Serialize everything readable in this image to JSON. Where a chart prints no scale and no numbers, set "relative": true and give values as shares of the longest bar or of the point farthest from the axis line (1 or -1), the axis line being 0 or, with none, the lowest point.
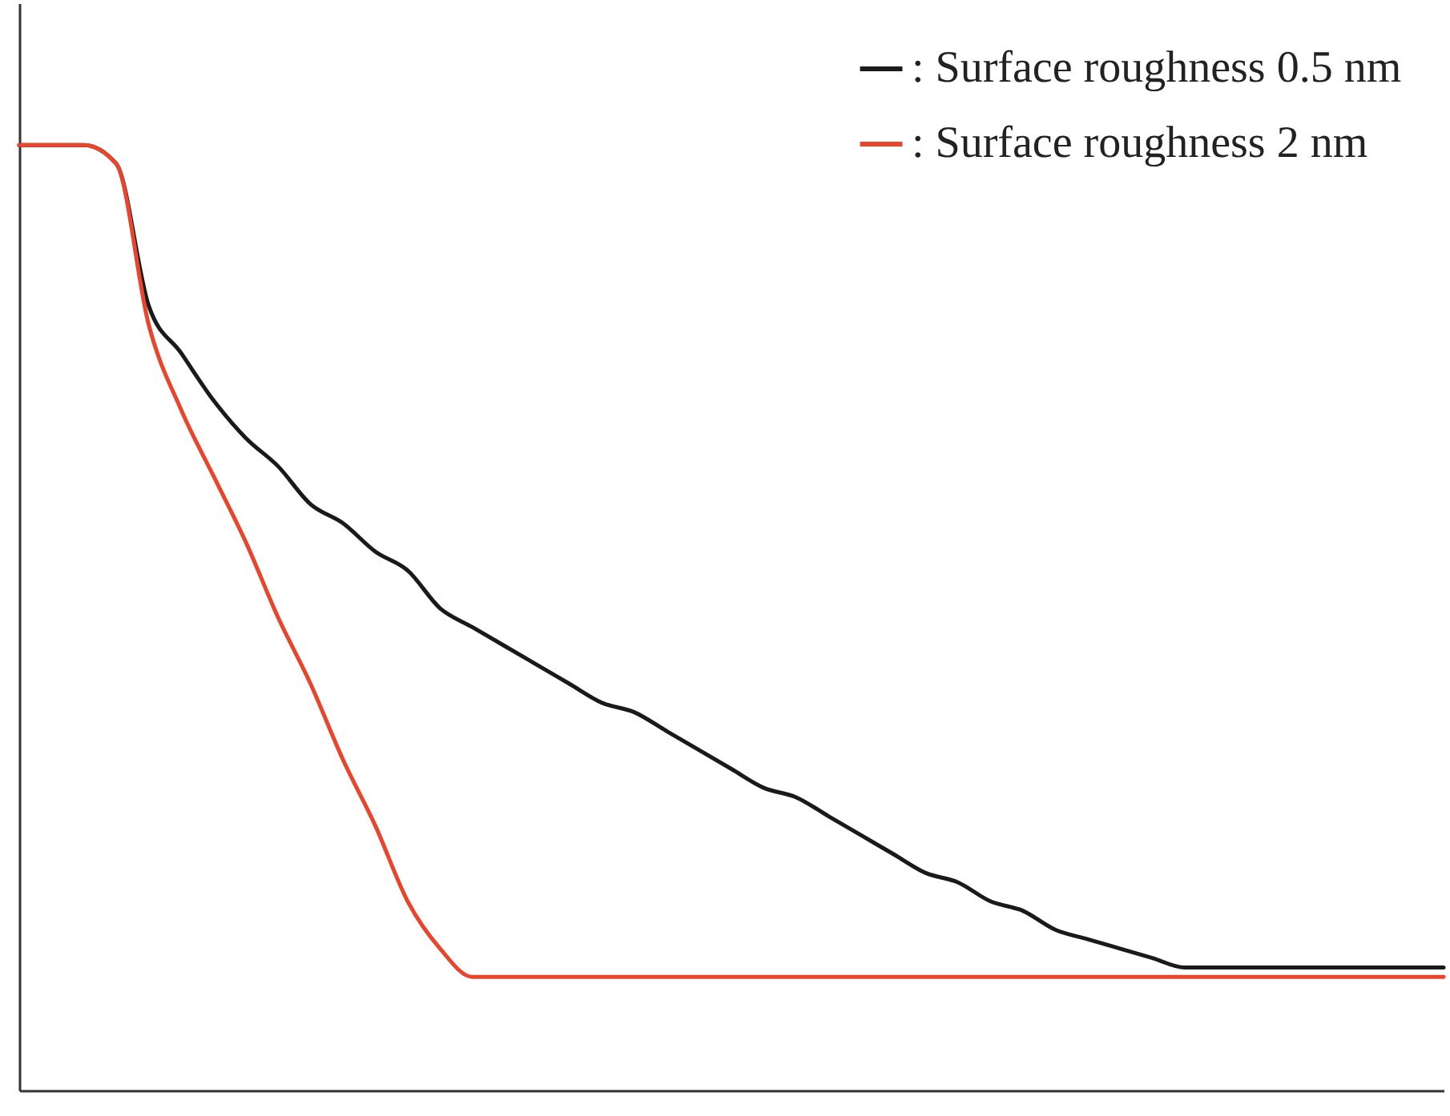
{
  "chart_data": {
    "type": "line",
    "relative": true,
    "legend": "top right",
    "categories": [
      null,
      null,
      null,
      null,
      null,
      null,
      null,
      null,
      null,
      null,
      null,
      null,
      null,
      null,
      null,
      null,
      null,
      null,
      null,
      null,
      null,
      null,
      null,
      null,
      null,
      null,
      null,
      null,
      null,
      null,
      null,
      null,
      null,
      null,
      null,
      null,
      null,
      null,
      null,
      null,
      null,
      null,
      null,
      null,
      null
    ],
    "series": [
      {
        "name": ": Surface roughness 0.5 nm",
        "color": "#1a1a1a",
        "values": [
          1.0,
          1.0,
          1.0,
          0.98,
          0.83,
          0.78,
          0.73,
          0.69,
          0.66,
          0.62,
          0.6,
          0.57,
          0.55,
          0.51,
          0.49,
          0.47,
          0.45,
          0.43,
          0.41,
          0.4,
          0.38,
          0.36,
          0.34,
          0.32,
          0.31,
          0.29,
          0.27,
          0.25,
          0.23,
          0.22,
          0.2,
          0.19,
          0.17,
          0.16,
          0.15,
          0.14,
          0.13,
          0.13,
          0.13,
          0.13,
          0.13,
          0.13,
          0.13,
          0.13,
          0.13
        ]
      },
      {
        "name": ": Surface roughness 2 nm",
        "color": "#e8452c",
        "values": [
          1.0,
          1.0,
          1.0,
          0.98,
          0.81,
          0.72,
          0.65,
          0.58,
          0.5,
          0.43,
          0.35,
          0.28,
          0.2,
          0.15,
          0.12,
          0.12,
          0.12,
          0.12,
          0.12,
          0.12,
          0.12,
          0.12,
          0.12,
          0.12,
          0.12,
          0.12,
          0.12,
          0.12,
          0.12,
          0.12,
          0.12,
          0.12,
          0.12,
          0.12,
          0.12,
          0.12,
          0.12,
          0.12,
          0.12,
          0.12,
          0.12,
          0.12,
          0.12,
          0.12,
          0.12
        ]
      }
    ]
  }
}
